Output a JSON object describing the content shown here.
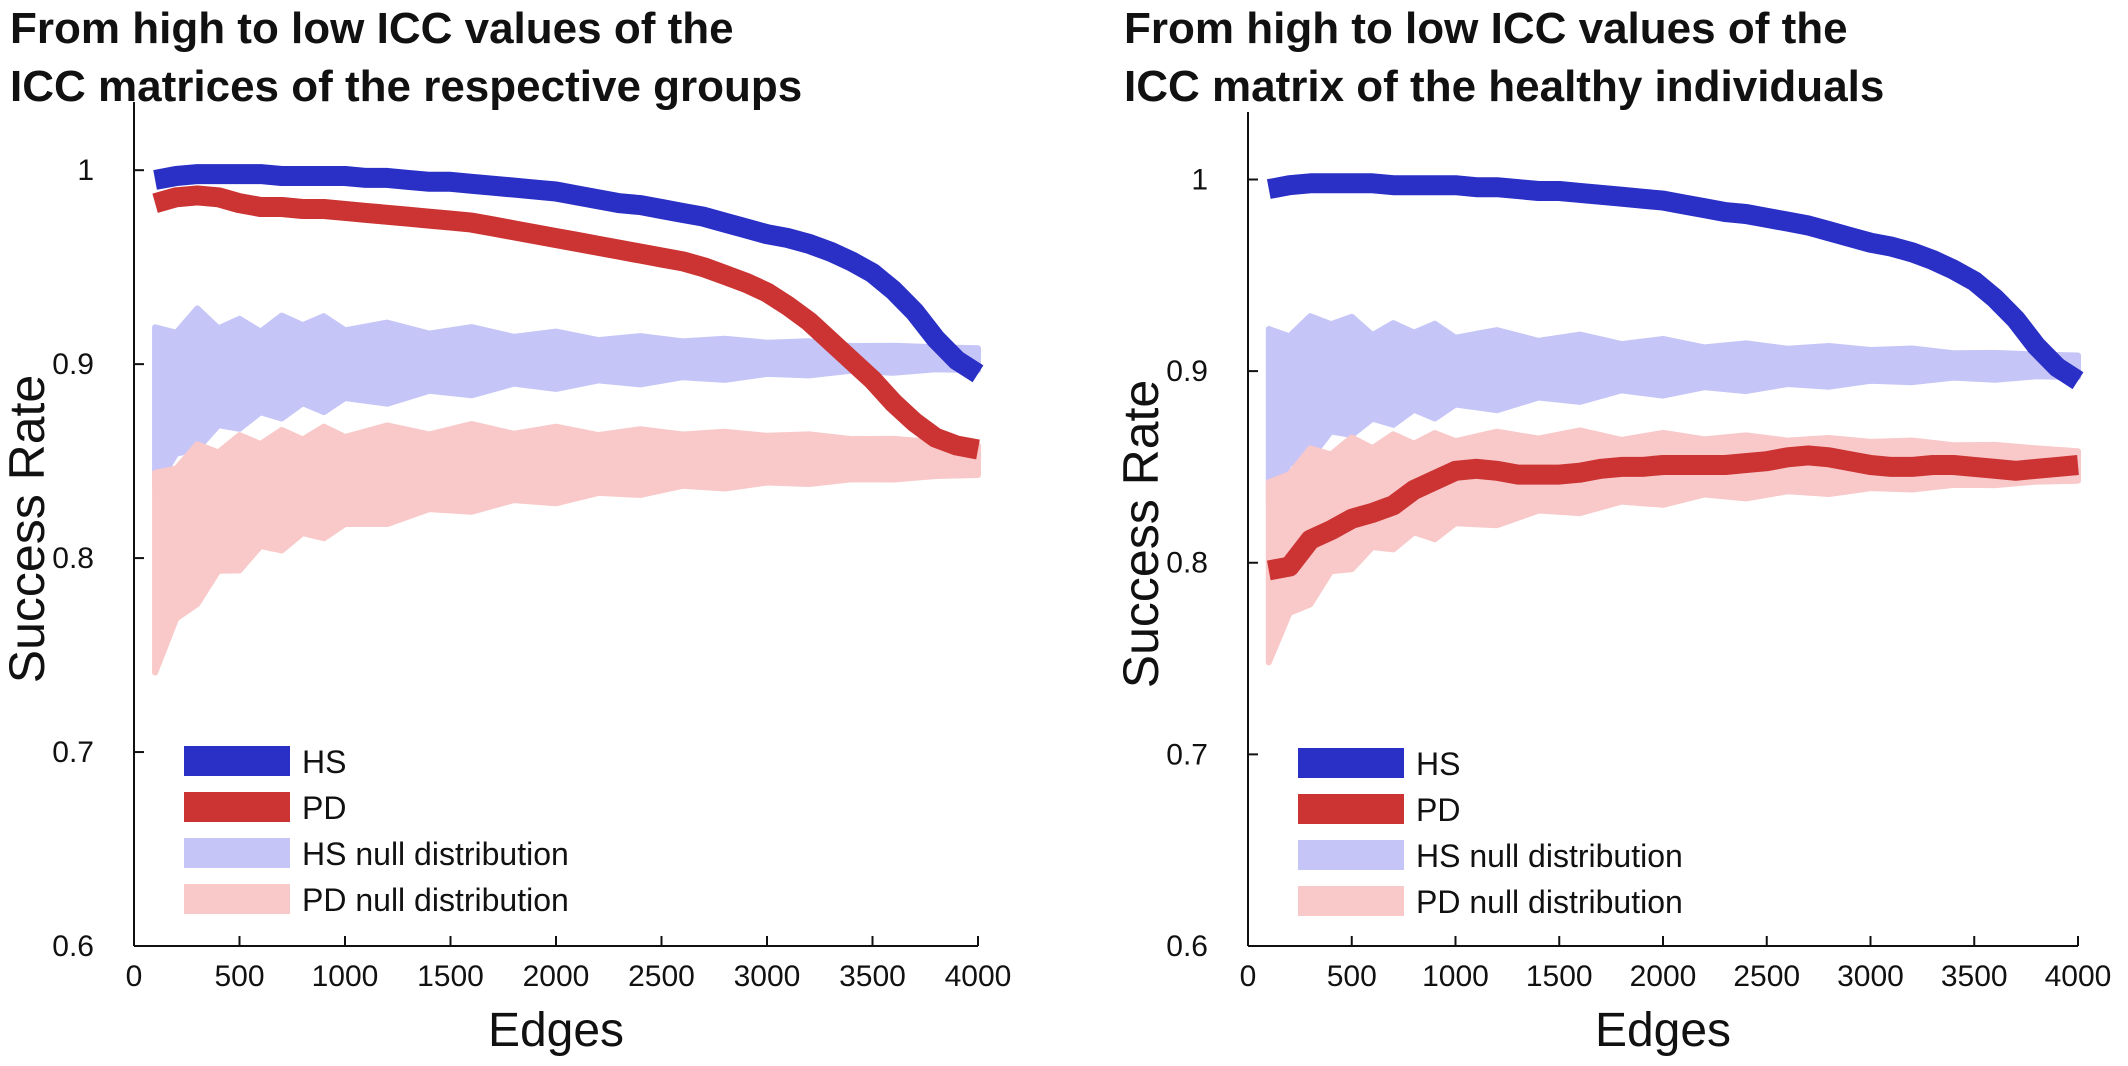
{
  "chart_data": [
    {
      "type": "line",
      "title": "From high to low ICC values of the ICC matrices of the respective groups",
      "title_lines": [
        "From high to low ICC values of the",
        "ICC matrices of the respective groups"
      ],
      "xlabel": "Edges",
      "ylabel": "Success Rate",
      "xlim": [
        0,
        4000
      ],
      "ylim": [
        0.6,
        1.03
      ],
      "xticks": [
        0,
        500,
        1000,
        1500,
        2000,
        2500,
        3000,
        3500,
        4000
      ],
      "yticks": [
        0.6,
        0.7,
        0.8,
        0.9,
        1
      ],
      "ytick_labels": [
        "0.6",
        "0.7",
        "0.8",
        "0.9",
        "1"
      ],
      "grid": false,
      "legend_position": "bottom-left",
      "series": [
        {
          "name": "HS",
          "kind": "line",
          "color": "#2a2fc6",
          "x": [
            100,
            200,
            300,
            400,
            500,
            600,
            700,
            800,
            900,
            1000,
            1100,
            1200,
            1300,
            1400,
            1500,
            1600,
            1700,
            1800,
            1900,
            2000,
            2100,
            2200,
            2300,
            2400,
            2500,
            2600,
            2700,
            2800,
            2900,
            3000,
            3100,
            3200,
            3300,
            3400,
            3500,
            3600,
            3700,
            3800,
            3900,
            4000
          ],
          "y": [
            0.995,
            0.997,
            0.998,
            0.998,
            0.998,
            0.998,
            0.997,
            0.997,
            0.997,
            0.997,
            0.996,
            0.996,
            0.995,
            0.994,
            0.994,
            0.993,
            0.992,
            0.991,
            0.99,
            0.989,
            0.987,
            0.985,
            0.983,
            0.982,
            0.98,
            0.978,
            0.976,
            0.973,
            0.97,
            0.967,
            0.965,
            0.962,
            0.958,
            0.953,
            0.947,
            0.938,
            0.927,
            0.913,
            0.902,
            0.895
          ]
        },
        {
          "name": "PD",
          "kind": "line",
          "color": "#cc3333",
          "x": [
            100,
            200,
            300,
            400,
            500,
            600,
            700,
            800,
            900,
            1000,
            1100,
            1200,
            1300,
            1400,
            1500,
            1600,
            1700,
            1800,
            1900,
            2000,
            2100,
            2200,
            2300,
            2400,
            2500,
            2600,
            2700,
            2800,
            2900,
            3000,
            3100,
            3200,
            3300,
            3400,
            3500,
            3600,
            3700,
            3800,
            3900,
            4000
          ],
          "y": [
            0.983,
            0.986,
            0.987,
            0.986,
            0.983,
            0.981,
            0.981,
            0.98,
            0.98,
            0.979,
            0.978,
            0.977,
            0.976,
            0.975,
            0.974,
            0.973,
            0.971,
            0.969,
            0.967,
            0.965,
            0.963,
            0.961,
            0.959,
            0.957,
            0.955,
            0.953,
            0.95,
            0.946,
            0.942,
            0.937,
            0.93,
            0.922,
            0.912,
            0.902,
            0.892,
            0.88,
            0.87,
            0.862,
            0.858,
            0.856
          ]
        },
        {
          "name": "HS null distribution",
          "kind": "band",
          "color": "#c5c5f7",
          "x": [
            100,
            200,
            300,
            400,
            500,
            600,
            700,
            800,
            900,
            1000,
            1200,
            1400,
            1600,
            1800,
            2000,
            2200,
            2400,
            2600,
            2800,
            3000,
            3200,
            3400,
            3600,
            3800,
            4000
          ],
          "lower": [
            0.84,
            0.85,
            0.86,
            0.865,
            0.87,
            0.872,
            0.875,
            0.877,
            0.878,
            0.88,
            0.882,
            0.884,
            0.886,
            0.888,
            0.889,
            0.89,
            0.891,
            0.892,
            0.893,
            0.894,
            0.895,
            0.896,
            0.896,
            0.897,
            0.897
          ],
          "upper": [
            0.915,
            0.92,
            0.925,
            0.922,
            0.92,
            0.92,
            0.922,
            0.923,
            0.922,
            0.92,
            0.919,
            0.918,
            0.917,
            0.916,
            0.915,
            0.914,
            0.913,
            0.913,
            0.912,
            0.912,
            0.911,
            0.91,
            0.909,
            0.909,
            0.908
          ]
        },
        {
          "name": "PD null distribution",
          "kind": "band",
          "color": "#f9c8c8",
          "x": [
            100,
            200,
            300,
            400,
            500,
            600,
            700,
            800,
            900,
            1000,
            1200,
            1400,
            1600,
            1800,
            2000,
            2200,
            2400,
            2600,
            2800,
            3000,
            3200,
            3400,
            3600,
            3800,
            4000
          ],
          "lower": [
            0.745,
            0.765,
            0.78,
            0.79,
            0.797,
            0.803,
            0.807,
            0.81,
            0.813,
            0.815,
            0.82,
            0.823,
            0.826,
            0.828,
            0.83,
            0.832,
            0.834,
            0.836,
            0.837,
            0.838,
            0.839,
            0.84,
            0.841,
            0.842,
            0.843
          ],
          "upper": [
            0.84,
            0.85,
            0.855,
            0.858,
            0.86,
            0.862,
            0.863,
            0.864,
            0.865,
            0.865,
            0.866,
            0.866,
            0.867,
            0.866,
            0.866,
            0.865,
            0.865,
            0.865,
            0.864,
            0.864,
            0.863,
            0.862,
            0.861,
            0.86,
            0.858
          ]
        }
      ]
    },
    {
      "type": "line",
      "title": "From high to low ICC values of the ICC matrix of the healthy individuals",
      "title_lines": [
        "From high to low ICC values of the",
        "ICC matrix of the healthy individuals"
      ],
      "xlabel": "Edges",
      "ylabel": "Success Rate",
      "xlim": [
        0,
        4000
      ],
      "ylim": [
        0.6,
        1.03
      ],
      "xticks": [
        0,
        500,
        1000,
        1500,
        2000,
        2500,
        3000,
        3500,
        4000
      ],
      "yticks": [
        0.6,
        0.7,
        0.8,
        0.9,
        1
      ],
      "ytick_labels": [
        "0.6",
        "0.7",
        "0.8",
        "0.9",
        "1"
      ],
      "grid": false,
      "legend_position": "bottom-left",
      "series": [
        {
          "name": "HS",
          "kind": "line",
          "color": "#2a2fc6",
          "x": [
            100,
            200,
            300,
            400,
            500,
            600,
            700,
            800,
            900,
            1000,
            1100,
            1200,
            1300,
            1400,
            1500,
            1600,
            1700,
            1800,
            1900,
            2000,
            2100,
            2200,
            2300,
            2400,
            2500,
            2600,
            2700,
            2800,
            2900,
            3000,
            3100,
            3200,
            3300,
            3400,
            3500,
            3600,
            3700,
            3800,
            3900,
            4000
          ],
          "y": [
            0.995,
            0.997,
            0.998,
            0.998,
            0.998,
            0.998,
            0.997,
            0.997,
            0.997,
            0.997,
            0.996,
            0.996,
            0.995,
            0.994,
            0.994,
            0.993,
            0.992,
            0.991,
            0.99,
            0.989,
            0.987,
            0.985,
            0.983,
            0.982,
            0.98,
            0.978,
            0.976,
            0.973,
            0.97,
            0.967,
            0.965,
            0.962,
            0.958,
            0.953,
            0.947,
            0.938,
            0.927,
            0.913,
            0.902,
            0.895
          ]
        },
        {
          "name": "PD",
          "kind": "line",
          "color": "#cc3333",
          "x": [
            100,
            200,
            300,
            400,
            500,
            600,
            700,
            800,
            900,
            1000,
            1100,
            1200,
            1300,
            1400,
            1500,
            1600,
            1700,
            1800,
            1900,
            2000,
            2100,
            2200,
            2300,
            2400,
            2500,
            2600,
            2700,
            2800,
            2900,
            3000,
            3100,
            3200,
            3300,
            3400,
            3500,
            3600,
            3700,
            3800,
            3900,
            4000
          ],
          "y": [
            0.796,
            0.798,
            0.812,
            0.817,
            0.823,
            0.826,
            0.83,
            0.838,
            0.843,
            0.848,
            0.849,
            0.848,
            0.846,
            0.846,
            0.846,
            0.847,
            0.849,
            0.85,
            0.85,
            0.851,
            0.851,
            0.851,
            0.851,
            0.852,
            0.853,
            0.855,
            0.856,
            0.855,
            0.853,
            0.851,
            0.85,
            0.85,
            0.851,
            0.851,
            0.85,
            0.849,
            0.848,
            0.849,
            0.85,
            0.851
          ]
        },
        {
          "name": "HS null distribution",
          "kind": "band",
          "color": "#c5c5f7",
          "x": [
            100,
            200,
            300,
            400,
            500,
            600,
            700,
            800,
            900,
            1000,
            1200,
            1400,
            1600,
            1800,
            2000,
            2200,
            2400,
            2600,
            2800,
            3000,
            3200,
            3400,
            3600,
            3800,
            4000
          ],
          "lower": [
            0.835,
            0.848,
            0.858,
            0.865,
            0.87,
            0.872,
            0.875,
            0.877,
            0.878,
            0.88,
            0.882,
            0.884,
            0.886,
            0.888,
            0.889,
            0.89,
            0.891,
            0.892,
            0.893,
            0.894,
            0.895,
            0.896,
            0.896,
            0.897,
            0.897
          ],
          "upper": [
            0.918,
            0.922,
            0.925,
            0.928,
            0.925,
            0.922,
            0.922,
            0.923,
            0.922,
            0.92,
            0.919,
            0.918,
            0.917,
            0.916,
            0.915,
            0.914,
            0.913,
            0.913,
            0.912,
            0.912,
            0.911,
            0.91,
            0.909,
            0.909,
            0.908
          ]
        },
        {
          "name": "PD null distribution",
          "kind": "band",
          "color": "#f9c8c8",
          "x": [
            100,
            200,
            300,
            400,
            500,
            600,
            700,
            800,
            900,
            1000,
            1200,
            1400,
            1600,
            1800,
            2000,
            2200,
            2400,
            2600,
            2800,
            3000,
            3200,
            3400,
            3600,
            3800,
            4000
          ],
          "lower": [
            0.752,
            0.77,
            0.782,
            0.792,
            0.8,
            0.805,
            0.81,
            0.813,
            0.815,
            0.818,
            0.822,
            0.825,
            0.828,
            0.83,
            0.832,
            0.834,
            0.835,
            0.836,
            0.837,
            0.838,
            0.839,
            0.84,
            0.841,
            0.842,
            0.843
          ],
          "upper": [
            0.838,
            0.85,
            0.856,
            0.86,
            0.862,
            0.863,
            0.864,
            0.865,
            0.865,
            0.866,
            0.866,
            0.867,
            0.867,
            0.866,
            0.866,
            0.866,
            0.865,
            0.865,
            0.864,
            0.864,
            0.863,
            0.862,
            0.861,
            0.86,
            0.858
          ]
        }
      ]
    }
  ]
}
